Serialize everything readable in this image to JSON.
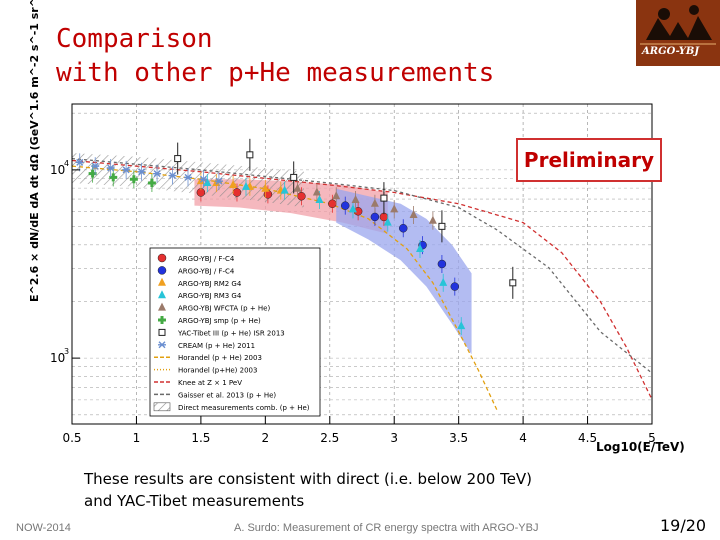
{
  "slide": {
    "title_line1": "Comparison",
    "title_line2": "with other p+He measurements",
    "logo_text": "ARGO-YBJ",
    "preliminary": "Preliminary",
    "note_line1": "These results are consistent with direct (i.e. below 200 TeV)",
    "note_line2": "and YAC-Tibet measurements",
    "footer_left": "NOW-2014",
    "footer_center": "A. Surdo: Measurement of CR energy spectra with ARGO-YBJ",
    "page_number": "19/20"
  },
  "colors": {
    "title": "#c00000",
    "argo_fc4": "#e53030",
    "argo_fc4b": "#2233dd",
    "rm2": "#f0a020",
    "rm3": "#27c4d8",
    "wfcta": "#9b7a6a",
    "smp": "#44aa44",
    "cream": "#6a8fd0",
    "band_red": "#f2a0a8",
    "band_blue": "#9aa6ee",
    "horandel": "#e2a010",
    "gaisser": "#6a6a6a",
    "knee": "#d03030"
  },
  "chart_data": {
    "type": "scatter",
    "title": "",
    "xlabel": "Log10(E/TeV)",
    "ylabel": "E^2.6 × dN/dE dA dt dΩ (GeV^1.6 m^-2 s^-1 sr^-1)",
    "xlim": [
      0.5,
      5
    ],
    "ylim_log10": [
      2.65,
      4.35
    ],
    "yscale": "log",
    "x_ticks": [
      "0.5",
      "1",
      "1.5",
      "2",
      "2.5",
      "3",
      "3.5",
      "4",
      "4.5",
      "5"
    ],
    "y_ticks": [
      {
        "base": "10",
        "exp": "3",
        "log10": 3
      },
      {
        "base": "10",
        "exp": "4",
        "log10": 4
      }
    ],
    "grid": "dashed",
    "legend_position": "bottom-left inside",
    "legend": [
      {
        "label": "ARGO-YBJ / F-C4",
        "marker": "circle",
        "color_key": "argo_fc4"
      },
      {
        "label": "ARGO-YBJ / F-C4",
        "marker": "circle",
        "color_key": "argo_fc4b"
      },
      {
        "label": "ARGO-YBJ RM2 G4",
        "marker": "triangle",
        "color_key": "rm2"
      },
      {
        "label": "ARGO-YBJ RM3 G4",
        "marker": "triangle",
        "color_key": "rm3"
      },
      {
        "label": "ARGO-YBJ WFCTA (p + He)",
        "marker": "triangle",
        "color_key": "wfcta"
      },
      {
        "label": "ARGO-YBJ smp (p + He)",
        "marker": "cross",
        "color_key": "smp"
      },
      {
        "label": "YAC-Tibet III (p + He) ISR 2013",
        "marker": "square-open",
        "color_key": "gaisser"
      },
      {
        "label": "CREAM (p + He) 2011",
        "marker": "star",
        "color_key": "cream"
      },
      {
        "label": "Horandel (p + He) 2003",
        "marker": "line-dash",
        "color_key": "horandel"
      },
      {
        "label": "Horandel (p+He) 2003",
        "marker": "line-dot",
        "color_key": "horandel"
      },
      {
        "label": "Knee at Z × 1 PeV",
        "marker": "line-dash",
        "color_key": "knee"
      },
      {
        "label": "Gaisser et al. 2013 (p + He)",
        "marker": "line-dash",
        "color_key": "gaisser"
      },
      {
        "label": "Direct measurements comb. (p + He)",
        "marker": "hatch",
        "color_key": "gaisser"
      }
    ],
    "series": [
      {
        "name": "ARGO-YBJ / F-C4",
        "color_key": "argo_fc4",
        "marker": "circle",
        "x": [
          1.5,
          1.78,
          2.02,
          2.28,
          2.52,
          2.72,
          2.92
        ],
        "y": [
          3.88,
          3.88,
          3.87,
          3.86,
          3.82,
          3.78,
          3.75
        ]
      },
      {
        "name": "ARGO-YBJ / F-C4 (high E)",
        "color_key": "argo_fc4b",
        "marker": "circle",
        "x": [
          2.62,
          2.85,
          3.07,
          3.22,
          3.37,
          3.47
        ],
        "y": [
          3.81,
          3.75,
          3.69,
          3.6,
          3.5,
          3.38
        ]
      },
      {
        "name": "ARGO-YBJ RM2 G4",
        "color_key": "rm2",
        "marker": "triangle",
        "x": [
          1.5,
          1.62,
          1.75,
          1.88,
          2.0,
          2.12
        ],
        "y": [
          3.94,
          3.93,
          3.92,
          3.91,
          3.9,
          3.89
        ]
      },
      {
        "name": "ARGO-YBJ RM3 G4",
        "color_key": "rm3",
        "marker": "triangle",
        "x": [
          1.55,
          1.85,
          2.15,
          2.42,
          2.68,
          2.95,
          3.2,
          3.38,
          3.52
        ],
        "y": [
          3.93,
          3.91,
          3.89,
          3.84,
          3.79,
          3.72,
          3.58,
          3.4,
          3.17
        ]
      },
      {
        "name": "ARGO-YBJ WFCTA (p + He)",
        "color_key": "wfcta",
        "marker": "triangle",
        "x": [
          2.25,
          2.4,
          2.55,
          2.7,
          2.85,
          3.0,
          3.15,
          3.3
        ],
        "y": [
          3.9,
          3.88,
          3.86,
          3.84,
          3.82,
          3.79,
          3.76,
          3.73
        ]
      },
      {
        "name": "ARGO-YBJ smp (p + He)",
        "color_key": "smp",
        "marker": "cross",
        "x": [
          0.66,
          0.82,
          0.98,
          1.12
        ],
        "y": [
          3.98,
          3.96,
          3.95,
          3.93
        ]
      },
      {
        "name": "CREAM (p + He) 2011",
        "color_key": "cream",
        "marker": "star",
        "x": [
          0.56,
          0.68,
          0.8,
          0.92,
          1.04,
          1.16,
          1.28,
          1.4,
          1.52,
          1.64
        ],
        "y": [
          4.04,
          4.02,
          4.01,
          4.0,
          3.99,
          3.98,
          3.97,
          3.96,
          3.95,
          3.94
        ]
      },
      {
        "name": "YAC-Tibet III (p + He) ISR 2013",
        "color_key": "gaisser",
        "marker": "square-open",
        "x": [
          1.32,
          1.88,
          2.22,
          2.92,
          3.37,
          3.92
        ],
        "y": [
          4.06,
          4.08,
          3.96,
          3.85,
          3.7,
          3.4
        ]
      }
    ],
    "curves": [
      {
        "name": "Horandel (p + He) 2003",
        "color_key": "horandel",
        "dash": "4,3",
        "x": [
          0.5,
          1.0,
          1.5,
          2.0,
          2.5,
          2.8,
          3.1,
          3.3,
          3.5,
          3.65,
          3.8
        ],
        "y": [
          4.02,
          3.99,
          3.95,
          3.9,
          3.82,
          3.74,
          3.58,
          3.4,
          3.14,
          2.94,
          2.72
        ]
      },
      {
        "name": "Knee at Z × 1 PeV",
        "color_key": "knee",
        "dash": "4,3",
        "x": [
          0.5,
          1.5,
          2.5,
          3.0,
          3.5,
          4.0,
          4.3,
          4.6,
          4.8,
          5.0
        ],
        "y": [
          4.05,
          3.99,
          3.92,
          3.88,
          3.82,
          3.72,
          3.56,
          3.3,
          3.06,
          2.78
        ]
      },
      {
        "name": "Gaisser et al. 2013 (p + He)",
        "color_key": "gaisser",
        "dash": "3,3",
        "x": [
          0.5,
          1.5,
          2.5,
          3.0,
          3.5,
          3.8,
          4.2,
          4.6,
          5.0
        ],
        "y": [
          4.06,
          4.0,
          3.93,
          3.89,
          3.8,
          3.68,
          3.48,
          3.14,
          2.92
        ]
      }
    ],
    "bands": [
      {
        "name": "ARGO-YBJ F-C4 systematic band",
        "color_key": "band_red",
        "x": [
          1.45,
          1.8,
          2.2,
          2.6,
          2.95
        ],
        "lo": [
          3.81,
          3.8,
          3.77,
          3.72,
          3.66
        ],
        "hi": [
          3.95,
          3.95,
          3.94,
          3.92,
          3.88
        ]
      },
      {
        "name": "ARGO-YBJ high-energy systematic band",
        "color_key": "band_blue",
        "x": [
          2.55,
          2.8,
          3.05,
          3.25,
          3.45,
          3.6
        ],
        "lo": [
          3.72,
          3.63,
          3.52,
          3.38,
          3.18,
          3.02
        ],
        "hi": [
          3.9,
          3.86,
          3.82,
          3.74,
          3.6,
          3.45
        ]
      },
      {
        "name": "Direct measurements comb. (p + He)",
        "color_key": "gaisser",
        "hatched": true,
        "x": [
          0.5,
          1.0,
          1.5,
          2.0,
          2.3
        ],
        "lo": [
          3.93,
          3.91,
          3.87,
          3.83,
          3.8
        ],
        "hi": [
          4.09,
          4.07,
          4.04,
          4.01,
          3.99
        ]
      }
    ]
  }
}
